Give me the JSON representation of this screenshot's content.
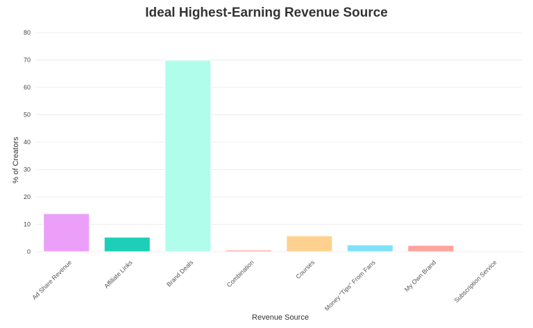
{
  "chart_data": {
    "type": "bar",
    "title": "Ideal Highest-Earning Revenue Source",
    "xlabel": "Revenue Source",
    "ylabel": "% of Creators",
    "ylim": [
      0,
      80
    ],
    "yticks": [
      0,
      10,
      20,
      30,
      40,
      50,
      60,
      70,
      80
    ],
    "grid": true,
    "categories": [
      "Ad Share Revenue",
      "Affiliate Links",
      "Brand Deals",
      "Combination",
      "Courses",
      "Money \"Tips\" From Fans",
      "My Own Brand",
      "Subscription Service"
    ],
    "values": [
      13.9,
      5.3,
      69.9,
      0.6,
      5.8,
      2.5,
      2.3,
      0
    ],
    "colors": [
      "#eb9ff8",
      "#1dcfb8",
      "#b0fdeb",
      "#ffa89c",
      "#ffd190",
      "#82e1fa",
      "#ffa39c",
      "#d0d0d0"
    ]
  }
}
